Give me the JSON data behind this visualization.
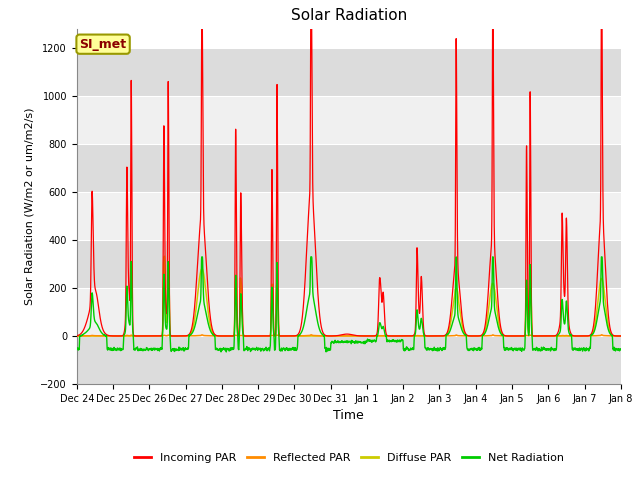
{
  "title": "Solar Radiation",
  "ylabel": "Solar Radiation (W/m2 or um/m2/s)",
  "xlabel": "Time",
  "ylim": [
    -200,
    1280
  ],
  "yticks": [
    -200,
    0,
    200,
    400,
    600,
    800,
    1000,
    1200
  ],
  "station_label": "SI_met",
  "x_tick_labels": [
    "Dec 24",
    "Dec 25",
    "Dec 26",
    "Dec 27",
    "Dec 28",
    "Dec 29",
    "Dec 30",
    "Dec 31",
    "Jan 1",
    "Jan 2",
    "Jan 3",
    "Jan 4",
    "Jan 5",
    "Jan 6",
    "Jan 7",
    "Jan 8"
  ],
  "colors": {
    "incoming": "#FF0000",
    "reflected": "#FF8C00",
    "diffuse": "#CCCC00",
    "net": "#00CC00",
    "band_dark": "#DCDCDC",
    "band_light": "#F0F0F0"
  },
  "legend_labels": [
    "Incoming PAR",
    "Reflected PAR",
    "Diffuse PAR",
    "Net Radiation"
  ],
  "n_days": 15,
  "title_fontsize": 11,
  "label_fontsize": 8,
  "tick_fontsize": 7
}
